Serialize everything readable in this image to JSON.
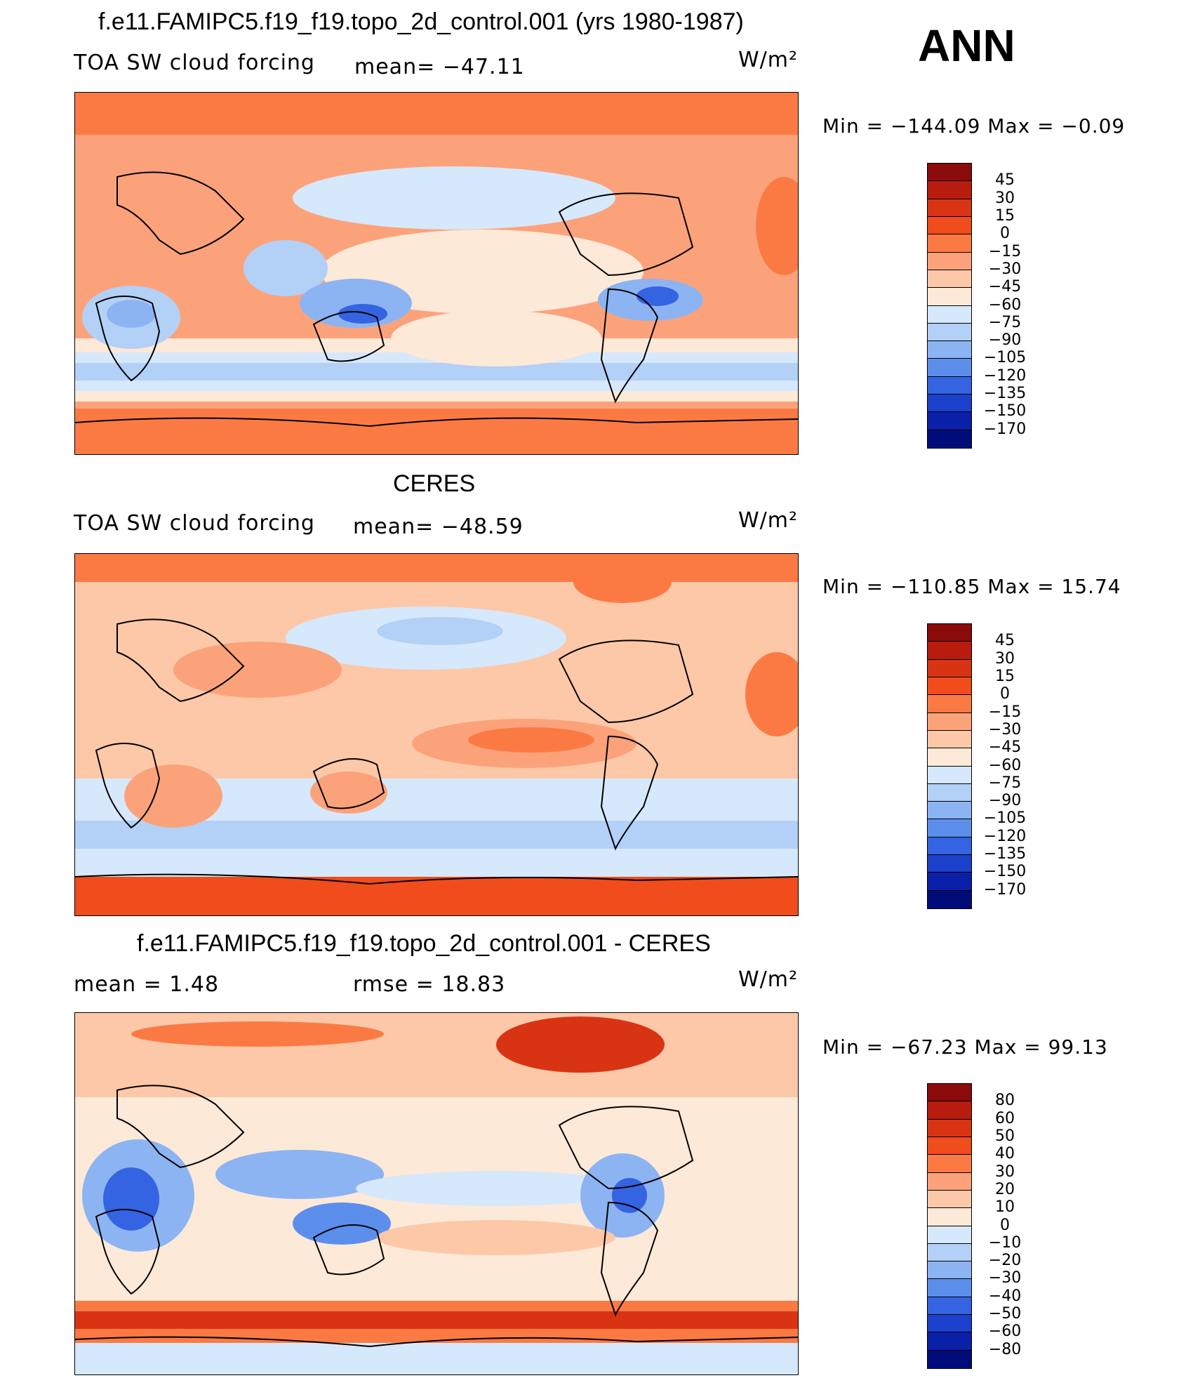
{
  "panels": [
    {
      "title": "f.e11.FAMIPC5.f19_f19.topo_2d_control.001 (yrs 1980-1987)",
      "left_label": "TOA SW cloud forcing",
      "center_label": "mean= −47.11",
      "units": "W/m²",
      "min_max": "Min  =  −144.09  Max  =    −0.09",
      "colorbar_labels": [
        "45",
        "30",
        "15",
        "0",
        "−15",
        "−30",
        "−45",
        "−60",
        "−75",
        "−90",
        "−105",
        "−120",
        "−135",
        "−150",
        "−170"
      ],
      "colorbar_colors": [
        "#8b0a0a",
        "#b81c0e",
        "#d83414",
        "#f04c1c",
        "#fb7a44",
        "#fca27a",
        "#fdc8a8",
        "#fde9d8",
        "#d6e8fb",
        "#b3d0f7",
        "#8cb4f2",
        "#5c8eec",
        "#3464e2",
        "#1a40cc",
        "#0a20a8",
        "#000c7a"
      ]
    },
    {
      "title": "CERES",
      "left_label": "TOA SW cloud forcing",
      "center_label": "mean= −48.59",
      "units": "W/m²",
      "min_max": "Min  =  −110.85  Max  =    15.74",
      "colorbar_labels": [
        "45",
        "30",
        "15",
        "0",
        "−15",
        "−30",
        "−45",
        "−60",
        "−75",
        "−90",
        "−105",
        "−120",
        "−135",
        "−150",
        "−170"
      ],
      "colorbar_colors": [
        "#8b0a0a",
        "#b81c0e",
        "#d83414",
        "#f04c1c",
        "#fb7a44",
        "#fca27a",
        "#fdc8a8",
        "#fde9d8",
        "#d6e8fb",
        "#b3d0f7",
        "#8cb4f2",
        "#5c8eec",
        "#3464e2",
        "#1a40cc",
        "#0a20a8",
        "#000c7a"
      ]
    },
    {
      "title": "f.e11.FAMIPC5.f19_f19.topo_2d_control.001 - CERES",
      "left_label": "mean =     1.48",
      "center_label": "rmse  =    18.83",
      "units": "W/m²",
      "min_max": "Min  =  −67.23  Max  =    99.13",
      "colorbar_labels": [
        "80",
        "60",
        "50",
        "40",
        "30",
        "20",
        "10",
        "0",
        "−10",
        "−20",
        "−30",
        "−40",
        "−50",
        "−60",
        "−80"
      ],
      "colorbar_colors": [
        "#8b0a0a",
        "#b81c0e",
        "#d83414",
        "#f04c1c",
        "#fb7a44",
        "#fca27a",
        "#fdc8a8",
        "#fde9d8",
        "#d6e8fb",
        "#b3d0f7",
        "#8cb4f2",
        "#5c8eec",
        "#3464e2",
        "#1a40cc",
        "#0a20a8",
        "#000c7a"
      ]
    }
  ],
  "season": "ANN"
}
